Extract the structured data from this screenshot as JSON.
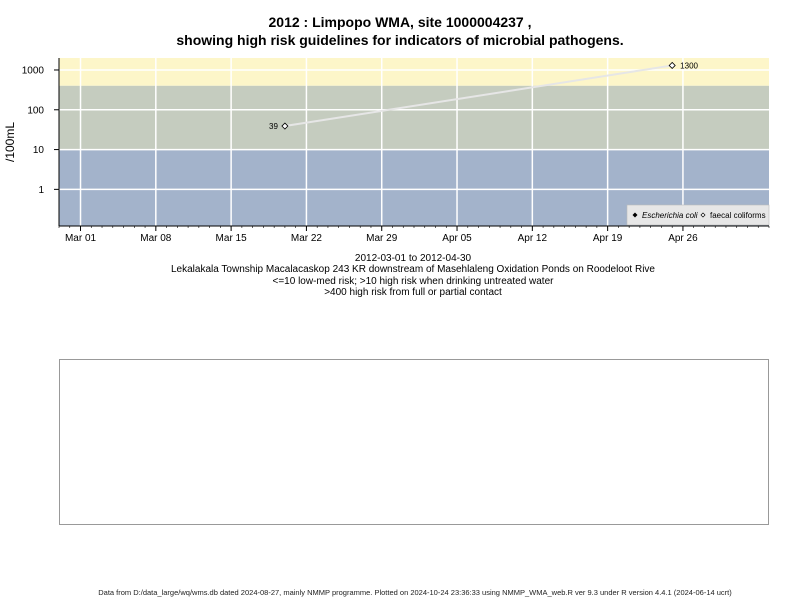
{
  "title_line1": "2012 : Limpopo WMA, site 1000004237 ,",
  "title_line2": "showing high risk guidelines for indicators of microbial pathogens.",
  "captions": {
    "date_range": "2012-03-01 to 2012-04-30",
    "site_description": "Lekalakala Township Macalacaskop 243 KR downstream of Masehlaleng Oxidation Ponds on Roodeloot Rive",
    "low_risk": "<=10 low-med risk; >10 high risk when drinking untreated water",
    "high_risk": ">400 high risk from full or partial contact"
  },
  "footer": "Data from D:/data_large/wq/wms.db dated 2024-08-27, mainly NMMP programme. Plotted on 2024-10-24 23:36:33 using NMMP_WMA_web.R ver 9.3 under R version 4.4.1 (2024-06-14 ucrt)",
  "colors": {
    "band_high": "#fdf6c9",
    "band_mid": "#c5ccbf",
    "band_low": "#a3b3cb",
    "grid": "#ffffff",
    "series_line": "#e6e6e6"
  },
  "chart_data": {
    "type": "line",
    "title": "2012 : Limpopo WMA, site 1000004237 ,\nshowing high risk guidelines for indicators of microbial pathogens.",
    "xlabel": "",
    "ylabel": "/100mL",
    "y_scale": "log",
    "ylim": [
      0.12,
      2000
    ],
    "y_ticks": [
      1,
      10,
      100,
      1000
    ],
    "y_tick_labels": [
      "1",
      "10",
      "100",
      "1000"
    ],
    "xlim": [
      "2012-02-28",
      "2012-05-04"
    ],
    "x_ticks": [
      "2012-03-01",
      "2012-03-08",
      "2012-03-15",
      "2012-03-22",
      "2012-03-29",
      "2012-04-05",
      "2012-04-12",
      "2012-04-19",
      "2012-04-26"
    ],
    "x_tick_labels": [
      "Mar 01",
      "Mar 08",
      "Mar 15",
      "Mar 22",
      "Mar 29",
      "Apr 05",
      "Apr 12",
      "Apr 19",
      "Apr 26"
    ],
    "grid": true,
    "risk_bands": [
      {
        "from": 400,
        "to": 2000,
        "color": "#fdf6c9"
      },
      {
        "from": 10,
        "to": 400,
        "color": "#c5ccbf"
      },
      {
        "from": 0.12,
        "to": 10,
        "color": "#a3b3cb"
      }
    ],
    "series": [
      {
        "name": "faecal coliforms",
        "marker": "open-diamond",
        "x": [
          "2012-03-20",
          "2012-04-25"
        ],
        "y": [
          39,
          1300
        ],
        "point_labels": [
          "39",
          "1300"
        ]
      },
      {
        "name": "Escherichia coli",
        "marker": "filled-diamond",
        "x": [],
        "y": []
      }
    ],
    "legend": {
      "position": "bottom-right",
      "entries": [
        "Escherichia coli",
        "faecal coliforms"
      ]
    }
  }
}
